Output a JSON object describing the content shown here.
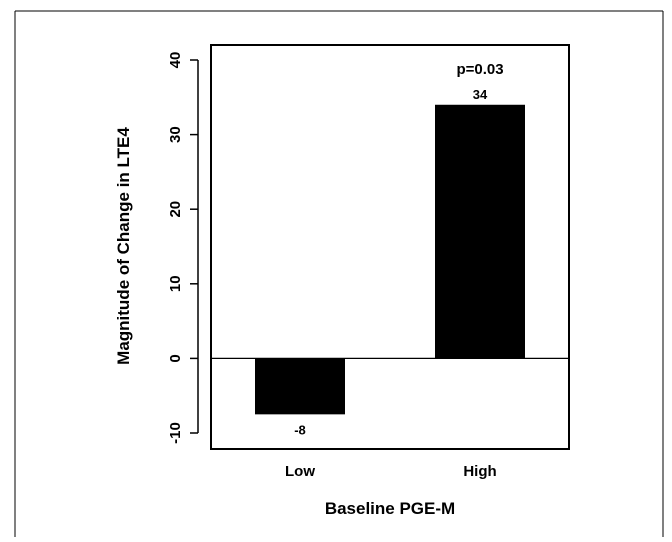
{
  "chart_data": {
    "type": "bar",
    "title": "",
    "xlabel": "Baseline PGE-M",
    "ylabel": "Magnitude of Change in LTE4",
    "categories": [
      "Low",
      "High"
    ],
    "values": [
      -7.5,
      34
    ],
    "data_labels": [
      "-8",
      "34"
    ],
    "annotation": "p=0.03",
    "ylim": [
      -12,
      42
    ],
    "yticks": [
      -10,
      0,
      10,
      20,
      30,
      40
    ],
    "ytick_labels": [
      "-10",
      "0",
      "10",
      "20",
      "30",
      "40"
    ],
    "bar_color": "#000000",
    "grid": false,
    "zero_line": true
  }
}
